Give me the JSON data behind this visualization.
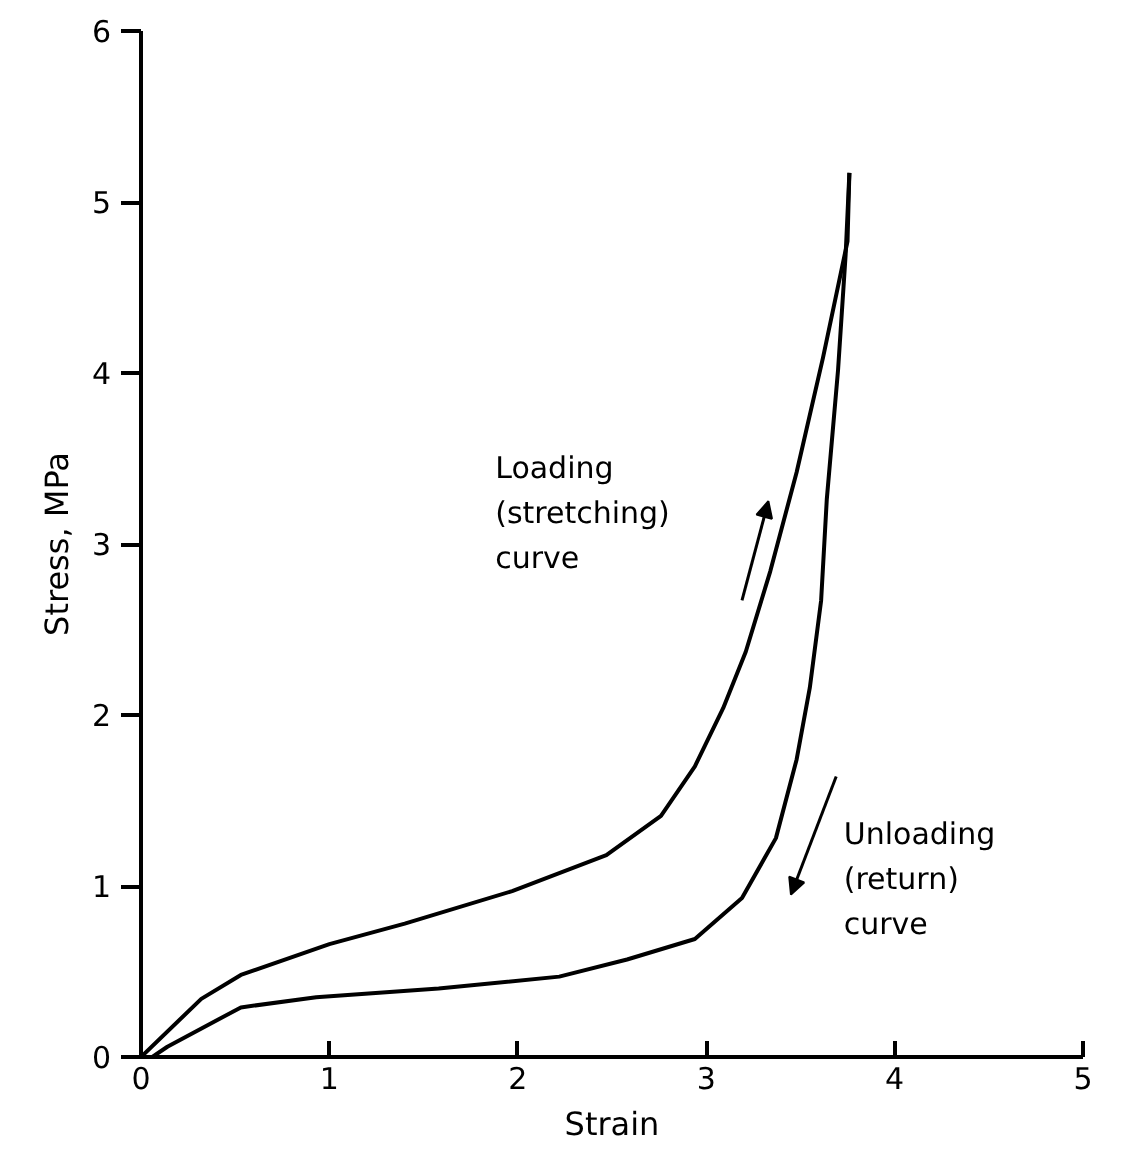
{
  "chart_data": {
    "type": "line",
    "xlabel": "Strain",
    "ylabel": "Stress, MPa",
    "xlim": [
      0,
      5
    ],
    "ylim": [
      0,
      6
    ],
    "xticks": [
      0,
      1,
      2,
      3,
      4,
      5
    ],
    "yticks": [
      0,
      1,
      2,
      3,
      4,
      5,
      6
    ],
    "grid": false,
    "marker": "none",
    "line_style": "solid",
    "series": [
      {
        "color": "#000000",
        "x": [
          0,
          0.32,
          0.53,
          1.0,
          1.4,
          1.97,
          2.47,
          2.76,
          2.94,
          3.09,
          3.21,
          3.34,
          3.48,
          3.62,
          3.75,
          3.76
        ],
        "values": [
          0,
          0.34,
          0.48,
          0.66,
          0.78,
          0.97,
          1.18,
          1.41,
          1.7,
          2.04,
          2.37,
          2.84,
          3.42,
          4.09,
          4.77,
          5.17
        ]
      },
      {
        "color": "#000000",
        "x": [
          3.76,
          3.74,
          3.7,
          3.64,
          3.61,
          3.55,
          3.48,
          3.37,
          3.19,
          2.94,
          2.58,
          2.22,
          1.58,
          0.93,
          0.53,
          0.14,
          0.06
        ],
        "values": [
          5.17,
          4.69,
          4.02,
          3.26,
          2.67,
          2.16,
          1.74,
          1.28,
          0.93,
          0.69,
          0.57,
          0.47,
          0.4,
          0.35,
          0.29,
          0.06,
          0
        ]
      }
    ],
    "annotations": [
      "Loading\n(stretching)\ncurve",
      "Unloading\n(return)\ncurve"
    ]
  }
}
